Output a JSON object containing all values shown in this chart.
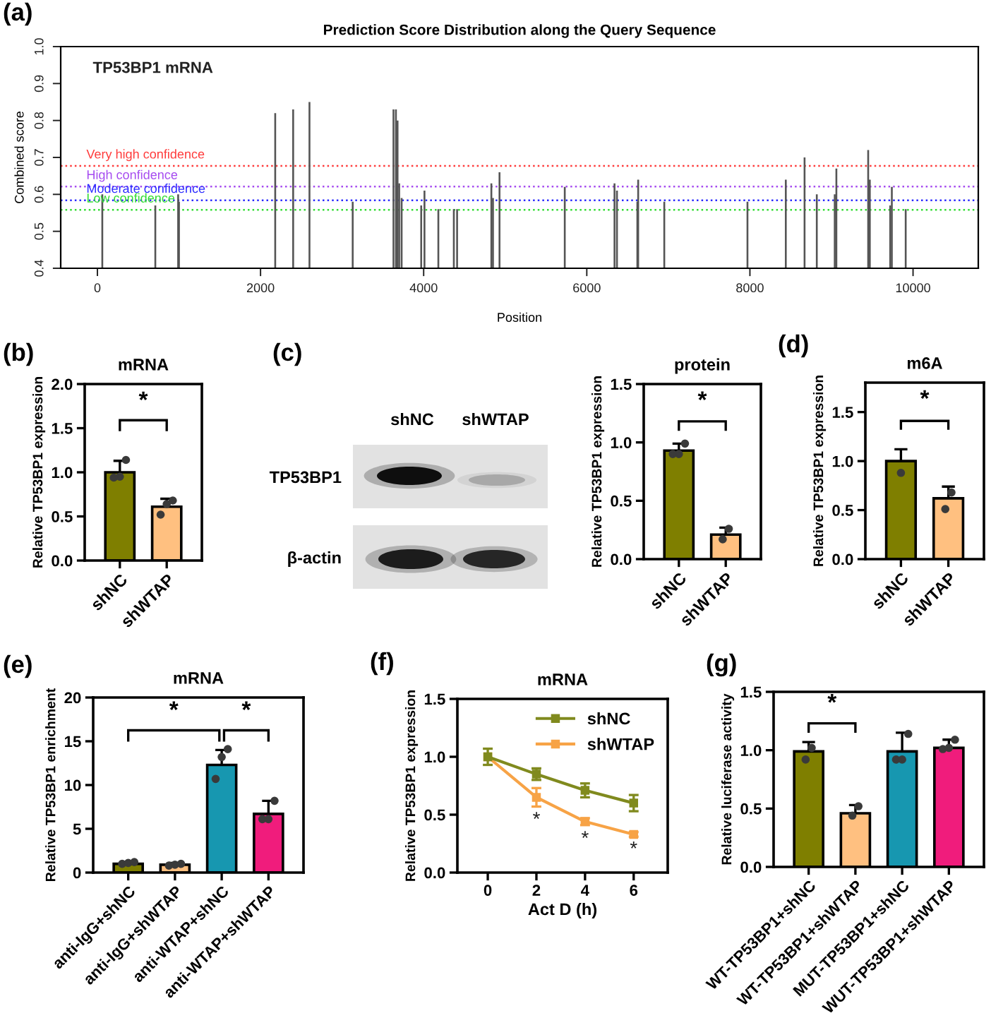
{
  "chart_data": [
    {
      "type": "bar",
      "title": "Prediction Score Distribution along the Query Sequence",
      "xlabel": "Position",
      "ylabel": "Combined score",
      "annotations": [
        "(a)",
        "TP53BP1 mRNA"
      ],
      "x": [
        60,
        710,
        990,
        1000,
        2180,
        2400,
        2600,
        3130,
        3630,
        3660,
        3680,
        3700,
        3730,
        3970,
        4010,
        4180,
        4370,
        4410,
        4830,
        4850,
        4930,
        5730,
        6340,
        6370,
        6620,
        6630,
        6950,
        7970,
        8440,
        8670,
        8820,
        9040,
        9060,
        9450,
        9470,
        9720,
        9740,
        9910
      ],
      "values": [
        0.6,
        0.57,
        0.6,
        0.58,
        0.82,
        0.83,
        0.85,
        0.58,
        0.83,
        0.83,
        0.8,
        0.63,
        0.59,
        0.57,
        0.61,
        0.56,
        0.56,
        0.56,
        0.63,
        0.59,
        0.66,
        0.62,
        0.63,
        0.61,
        0.58,
        0.64,
        0.58,
        0.58,
        0.64,
        0.7,
        0.6,
        0.6,
        0.67,
        0.72,
        0.64,
        0.57,
        0.62,
        0.56
      ],
      "color": "#555555",
      "xlim": [
        -450,
        10800
      ],
      "xticks": [
        0,
        2000,
        4000,
        6000,
        8000,
        10000
      ],
      "ylim": [
        0.4,
        1.0
      ],
      "yticks": [
        {
          "value": 0.4,
          "label": "0.4"
        },
        {
          "value": 0.5,
          "label": "0.5"
        },
        {
          "value": 0.6,
          "label": "0.6"
        },
        {
          "value": 0.7,
          "label": "0.7"
        },
        {
          "value": 0.8,
          "label": "0.8"
        },
        {
          "value": 0.9,
          "label": "0.9"
        },
        {
          "value": 1,
          "label": "1.0"
        }
      ],
      "ref_lines": [
        {
          "axis": "y",
          "value": 0.677,
          "label": "Very high confidence",
          "color": "#ff3b3b",
          "line_style": "dotted"
        },
        {
          "axis": "y",
          "value": 0.621,
          "label": "High confidence",
          "color": "#a64cf0",
          "line_style": "dotted"
        },
        {
          "axis": "y",
          "value": 0.584,
          "label": "Moderate confidence",
          "color": "#2b2bff",
          "line_style": "dotted"
        },
        {
          "axis": "y",
          "value": 0.558,
          "label": "Low confidence",
          "color": "#33dd33",
          "line_style": "dotted"
        }
      ]
    },
    {
      "type": "bar",
      "title": "mRNA",
      "ylabel": "Relative TP53BP1 expression",
      "categories": [
        "shNC",
        "shWTAP"
      ],
      "series": [
        {
          "values": [
            1.0,
            0.61
          ],
          "colors": [
            "#7f7f00",
            "#ffc080"
          ],
          "errors": [
            [
              1.0,
              1.13
            ],
            [
              0.61,
              0.7
            ]
          ]
        },
        {
          "type": "scatter",
          "marker": "circle",
          "color": "#3a3a3a",
          "x": [
            "shNC",
            "shNC",
            "shNC",
            "shWTAP",
            "shWTAP",
            "shWTAP"
          ],
          "values": [
            0.94,
            0.95,
            1.14,
            0.52,
            0.64,
            0.68
          ]
        }
      ],
      "ylim": [
        0,
        2
      ],
      "yticks": [
        {
          "value": 0,
          "label": "0.0"
        },
        {
          "value": 0.5,
          "label": "0.5"
        },
        {
          "value": 1,
          "label": "1.0"
        },
        {
          "value": 1.5,
          "label": "1.5"
        },
        {
          "value": 2,
          "label": "2.0"
        }
      ],
      "annotations": [
        "(b)",
        "*"
      ]
    },
    {
      "type": "other",
      "annotations": [
        "(c)",
        "shNC",
        "shWTAP",
        "TP53BP1",
        "β-actin"
      ]
    },
    {
      "type": "bar",
      "title": "protein",
      "ylabel": "Relative TP53BP1 expression",
      "categories": [
        "shNC",
        "shWTAP"
      ],
      "series": [
        {
          "values": [
            0.93,
            0.21
          ],
          "colors": [
            "#7f7f00",
            "#ffc080"
          ],
          "errors": [
            [
              0.93,
              0.99
            ],
            [
              0.21,
              0.27
            ]
          ]
        },
        {
          "type": "scatter",
          "marker": "circle",
          "color": "#3a3a3a",
          "x": [
            "shNC",
            "shNC",
            "shNC",
            "shWTAP",
            "shWTAP"
          ],
          "values": [
            0.9,
            0.9,
            0.99,
            0.17,
            0.26
          ]
        }
      ],
      "ylim": [
        0,
        1.5
      ],
      "yticks": [
        {
          "value": 0,
          "label": "0.0"
        },
        {
          "value": 0.5,
          "label": "0.5"
        },
        {
          "value": 1,
          "label": "1.0"
        },
        {
          "value": 1.5,
          "label": "1.5"
        }
      ],
      "annotations": [
        "*"
      ]
    },
    {
      "type": "bar",
      "title": "m6A",
      "ylabel": "Relative TP53BP1 expression",
      "categories": [
        "shNC",
        "shWTAP"
      ],
      "series": [
        {
          "values": [
            1.0,
            0.62
          ],
          "colors": [
            "#7f7f00",
            "#ffc080"
          ],
          "errors": [
            [
              1.0,
              1.12
            ],
            [
              0.62,
              0.74
            ]
          ]
        },
        {
          "type": "scatter",
          "marker": "circle",
          "color": "#3a3a3a",
          "x": [
            "shNC",
            "shWTAP",
            "shWTAP"
          ],
          "values": [
            0.88,
            0.51,
            0.68
          ]
        }
      ],
      "ylim": [
        0,
        1.8
      ],
      "yticks": [
        {
          "value": 0,
          "label": "0.0"
        },
        {
          "value": 0.5,
          "label": "0.5"
        },
        {
          "value": 1,
          "label": "1.0"
        },
        {
          "value": 1.5,
          "label": "1.5"
        }
      ],
      "annotations": [
        "(d)",
        "*"
      ]
    },
    {
      "type": "bar",
      "title": "mRNA",
      "ylabel": "Relative TP53BP1 enrichment",
      "categories": [
        "anti-IgG+shNC",
        "anti-IgG+shWTAP",
        "anti-WTAP+shNC",
        "anti-WTAP+shWTAP"
      ],
      "series": [
        {
          "values": [
            1.0,
            0.9,
            12.3,
            6.7
          ],
          "colors": [
            "#7f7f00",
            "#ffc080",
            "#1797b0",
            "#f01c7c"
          ],
          "errors": [
            [
              1.0,
              1.2
            ],
            [
              0.9,
              1.1
            ],
            [
              12.3,
              14.0
            ],
            [
              6.7,
              8.2
            ]
          ]
        },
        {
          "type": "scatter",
          "marker": "circle",
          "color": "#3a3a3a",
          "x": [
            "anti-IgG+shNC",
            "anti-IgG+shNC",
            "anti-IgG+shNC",
            "anti-IgG+shWTAP",
            "anti-IgG+shWTAP",
            "anti-IgG+shWTAP",
            "anti-WTAP+shNC",
            "anti-WTAP+shNC",
            "anti-WTAP+shNC",
            "anti-WTAP+shWTAP",
            "anti-WTAP+shWTAP",
            "anti-WTAP+shWTAP"
          ],
          "values": [
            1.0,
            1.1,
            1.2,
            0.8,
            0.9,
            1.0,
            10.7,
            13.2,
            14.1,
            6.1,
            6.1,
            8.2
          ]
        }
      ],
      "ylim": [
        0,
        20
      ],
      "yticks": [
        0,
        5,
        10,
        15,
        20
      ],
      "annotations": [
        "(e)",
        "*",
        "*"
      ]
    },
    {
      "type": "line",
      "title": "mRNA",
      "xlabel": "Act D (h)",
      "ylabel": "Relative TP53BP1 expression",
      "x": [
        0,
        2,
        4,
        6
      ],
      "series": [
        {
          "name": "shNC",
          "color": "#808a1e",
          "values": [
            1.0,
            0.85,
            0.71,
            0.6
          ],
          "errors": [
            0.07,
            0.05,
            0.06,
            0.07
          ]
        },
        {
          "name": "shWTAP",
          "color": "#f7a346",
          "values": [
            1.0,
            0.65,
            0.44,
            0.33
          ],
          "errors": [
            null,
            0.08,
            0.03,
            0.02
          ]
        }
      ],
      "xlim": [
        -1.25,
        7.4
      ],
      "xticks": [
        0,
        2,
        4,
        6
      ],
      "ylim": [
        0,
        1.5
      ],
      "yticks": [
        {
          "value": 0,
          "label": "0.0"
        },
        {
          "value": 0.5,
          "label": "0.5"
        },
        {
          "value": 1,
          "label": "1.0"
        },
        {
          "value": 1.5,
          "label": "1.5"
        }
      ],
      "legend": "top right",
      "marker": "square",
      "line_style": "solid",
      "annotations": [
        "(f)",
        "*",
        "*",
        "*"
      ]
    },
    {
      "type": "bar",
      "ylabel": "Relative luciferase activity",
      "categories": [
        "WT-TP53BP1+shNC",
        "WT-TP53BP1+shWTAP",
        "MUT-TP53BP1+shNC",
        "WUT-TP53BP1+shWTAP"
      ],
      "series": [
        {
          "values": [
            0.99,
            0.46,
            0.99,
            1.02
          ],
          "colors": [
            "#7f7f00",
            "#ffc080",
            "#1797b0",
            "#f01c7c"
          ],
          "errors": [
            [
              0.99,
              1.07
            ],
            [
              0.46,
              0.53
            ],
            [
              0.99,
              1.15
            ],
            [
              1.02,
              1.09
            ]
          ]
        },
        {
          "type": "scatter",
          "marker": "circle",
          "color": "#3a3a3a",
          "x": [
            "WT-TP53BP1+shNC",
            "WT-TP53BP1+shNC",
            "WT-TP53BP1+shWTAP",
            "WT-TP53BP1+shWTAP",
            "MUT-TP53BP1+shNC",
            "MUT-TP53BP1+shNC",
            "MUT-TP53BP1+shNC",
            "WUT-TP53BP1+shWTAP",
            "WUT-TP53BP1+shWTAP",
            "WUT-TP53BP1+shWTAP"
          ],
          "values": [
            0.92,
            1.02,
            0.44,
            0.52,
            0.92,
            0.92,
            1.14,
            1.01,
            1.02,
            1.09
          ]
        }
      ],
      "ylim": [
        0,
        1.5
      ],
      "yticks": [
        {
          "value": 0,
          "label": "0.0"
        },
        {
          "value": 0.5,
          "label": "0.5"
        },
        {
          "value": 1,
          "label": "1.0"
        },
        {
          "value": 1.5,
          "label": "1.5"
        }
      ],
      "annotations": [
        "(g)",
        "*"
      ]
    }
  ]
}
